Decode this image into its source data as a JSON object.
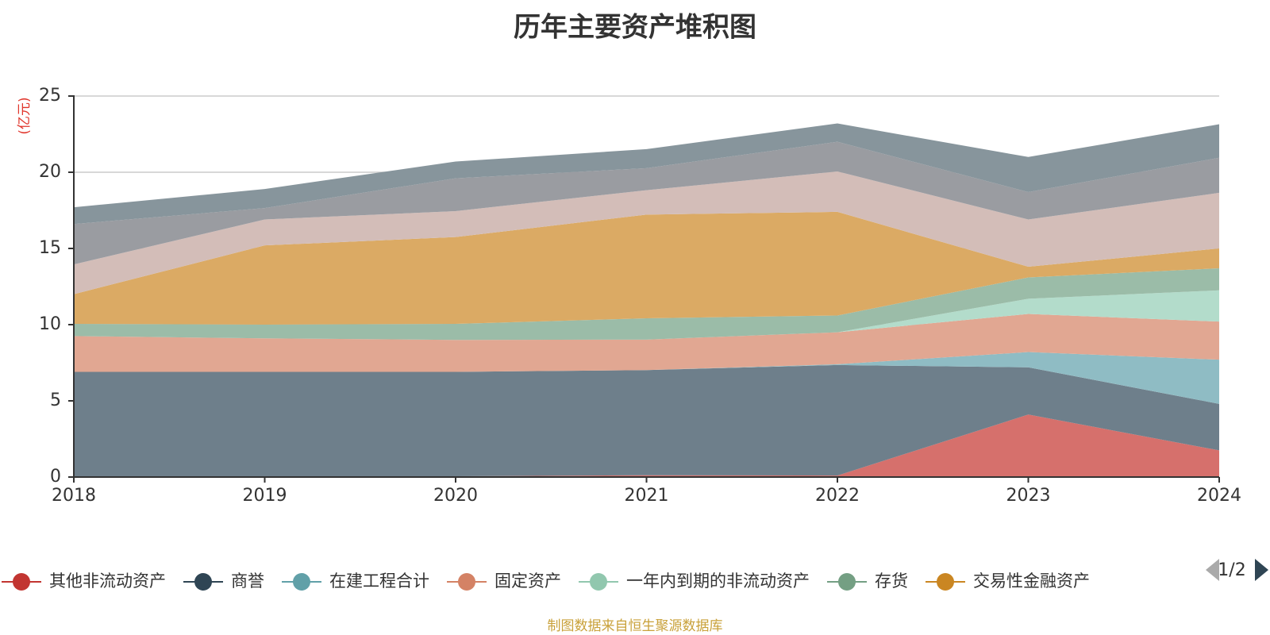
{
  "chart_data": {
    "type": "area",
    "stacked": true,
    "title": "历年主要资产堆积图",
    "unit_label": "(亿元)",
    "x": [
      "2018",
      "2019",
      "2020",
      "2021",
      "2022",
      "2023",
      "2024"
    ],
    "ylim": [
      0,
      25
    ],
    "yticks": [
      0,
      5,
      10,
      15,
      20,
      25
    ],
    "grid": true,
    "legend_position": "bottom",
    "series": [
      {
        "name": "其他非流动资产",
        "color": "#d6706c",
        "marker_color": "#c23531",
        "values": [
          0,
          0,
          0.05,
          0.12,
          0.1,
          4.1,
          1.75
        ]
      },
      {
        "name": "商誉",
        "color": "#6e7f8b",
        "marker_color": "#2f4554",
        "values": [
          6.9,
          6.9,
          6.85,
          6.9,
          7.25,
          3.1,
          3.05
        ]
      },
      {
        "name": "在建工程合计",
        "color": "#8fbcc4",
        "marker_color": "#61a0a8",
        "values": [
          0,
          0,
          0,
          0,
          0.05,
          1.0,
          2.9
        ]
      },
      {
        "name": "固定资产",
        "color": "#e1a792",
        "marker_color": "#d48265",
        "values": [
          2.35,
          2.2,
          2.1,
          2.0,
          2.1,
          2.5,
          2.5
        ]
      },
      {
        "name": "一年内到期的非流动资产",
        "color": "#b3dccb",
        "marker_color": "#91c7ae",
        "values": [
          0,
          0,
          0,
          0,
          0,
          1.0,
          2.05
        ]
      },
      {
        "name": "存货",
        "color": "#9bbca8",
        "marker_color": "#749f83",
        "values": [
          0.8,
          0.9,
          1.05,
          1.4,
          1.1,
          1.4,
          1.45
        ]
      },
      {
        "name": "交易性金融资产",
        "color": "#dbaa64",
        "marker_color": "#ca8622",
        "values": [
          1.95,
          5.2,
          5.7,
          6.8,
          6.8,
          0.7,
          1.3
        ]
      },
      {
        "name": "",
        "color": "#d3bdb8",
        "marker_color": "#bda29a",
        "values": [
          1.95,
          1.7,
          1.7,
          1.6,
          2.65,
          3.1,
          3.65
        ]
      },
      {
        "name": "",
        "color": "#9a9ca1",
        "marker_color": "#6e7074",
        "values": [
          2.65,
          0.75,
          2.15,
          1.45,
          1.95,
          1.8,
          2.3
        ]
      },
      {
        "name": "",
        "color": "#87959c",
        "marker_color": "#546570",
        "values": [
          1.1,
          1.25,
          1.1,
          1.25,
          1.2,
          2.3,
          2.2
        ]
      }
    ]
  },
  "legend": {
    "page_indicator": "1/2",
    "visible_count": 7
  },
  "source_note": "制图数据来自恒生聚源数据库"
}
